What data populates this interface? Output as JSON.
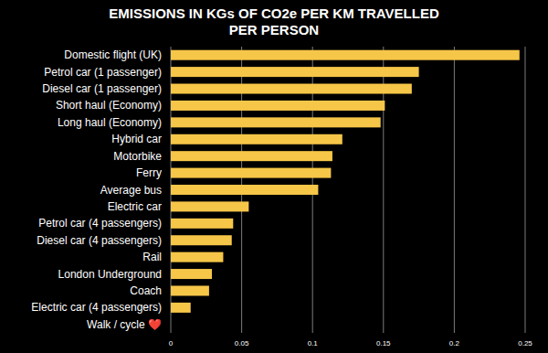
{
  "chart_data": {
    "type": "bar",
    "orientation": "horizontal",
    "title": "EMISSIONS IN KGs OF CO2e PER KM TRAVELLED PER PERSON",
    "categories": [
      "Domestic flight (UK)",
      "Petrol car (1 passenger)",
      "Diesel car (1 passenger)",
      "Short haul (Economy)",
      "Long haul (Economy)",
      "Hybrid car",
      "Motorbike",
      "Ferry",
      "Average bus",
      "Electric car",
      "Petrol car (4 passengers)",
      "Diesel car (4 passengers)",
      "Rail",
      "London Underground",
      "Coach",
      "Electric car (4 passengers)",
      "Walk / cycle ❤️"
    ],
    "values": [
      0.246,
      0.175,
      0.17,
      0.151,
      0.148,
      0.121,
      0.114,
      0.113,
      0.104,
      0.055,
      0.044,
      0.043,
      0.037,
      0.029,
      0.027,
      0.014,
      0
    ],
    "color": "#f6c648",
    "xlim": [
      0,
      0.25
    ],
    "xticks": [
      0,
      0.05,
      0.1,
      0.15,
      0.2,
      0.25
    ],
    "grid": true
  }
}
